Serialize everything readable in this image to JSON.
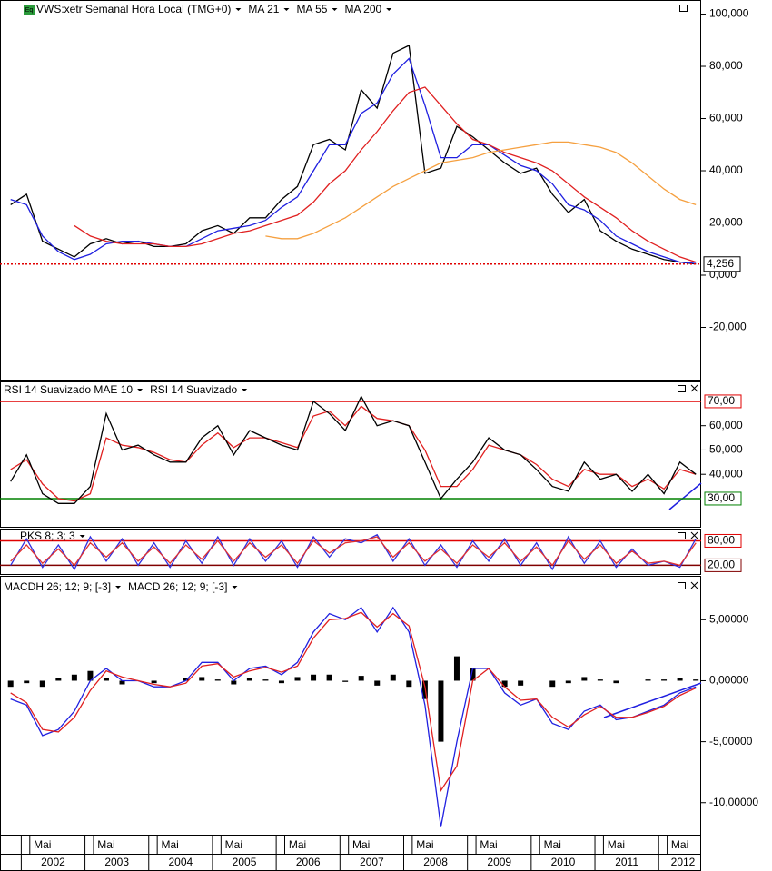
{
  "time_axis": {
    "xlim": [
      "2001-09",
      "2012-09"
    ],
    "x": [
      "2001-11",
      "2002-02",
      "2002-05",
      "2002-08",
      "2002-11",
      "2003-02",
      "2003-05",
      "2003-08",
      "2003-11",
      "2004-02",
      "2004-05",
      "2004-08",
      "2004-11",
      "2005-02",
      "2005-05",
      "2005-08",
      "2005-11",
      "2006-02",
      "2006-05",
      "2006-08",
      "2006-11",
      "2007-02",
      "2007-05",
      "2007-08",
      "2007-11",
      "2008-02",
      "2008-05",
      "2008-08",
      "2008-11",
      "2009-02",
      "2009-05",
      "2009-08",
      "2009-11",
      "2010-02",
      "2010-05",
      "2010-08",
      "2010-11",
      "2011-02",
      "2011-05",
      "2011-08",
      "2011-11",
      "2012-02",
      "2012-05",
      "2012-08"
    ],
    "month_ticks": [
      {
        "value": "2002-05",
        "label": "Mai"
      },
      {
        "value": "2003-05",
        "label": "Mai"
      },
      {
        "value": "2004-05",
        "label": "Mai"
      },
      {
        "value": "2005-05",
        "label": "Mai"
      },
      {
        "value": "2006-05",
        "label": "Mai"
      },
      {
        "value": "2007-05",
        "label": "Mai"
      },
      {
        "value": "2008-05",
        "label": "Mai"
      },
      {
        "value": "2009-05",
        "label": "Mai"
      },
      {
        "value": "2010-05",
        "label": "Mai"
      },
      {
        "value": "2011-05",
        "label": "Mai"
      },
      {
        "value": "2012-05",
        "label": "Mai"
      }
    ],
    "years": [
      "2002",
      "2003",
      "2004",
      "2005",
      "2006",
      "2007",
      "2008",
      "2009",
      "2010",
      "2011",
      "2012"
    ]
  },
  "chart_data": [
    {
      "type": "line",
      "title": "VWS:xetr Semanal Hora Local (TMG+0)",
      "badge": "Eq",
      "ylim": [
        -40,
        105.4
      ],
      "yticks": [
        {
          "value": 100,
          "label": "100,000"
        },
        {
          "value": 80,
          "label": "80,000"
        },
        {
          "value": 60,
          "label": "60,000"
        },
        {
          "value": 40,
          "label": "40,000"
        },
        {
          "value": 20,
          "label": "20,000"
        },
        {
          "value": 0,
          "label": "0,000"
        },
        {
          "value": -20,
          "label": "-20,000"
        }
      ],
      "last": {
        "value": 4.256,
        "label": "4,256",
        "color": "#e00000"
      },
      "series": [
        {
          "color": "#000000",
          "values": [
            27,
            31,
            13,
            10,
            7,
            12,
            14,
            12,
            13,
            11,
            11,
            12,
            17,
            19,
            16,
            22,
            22,
            29,
            34,
            50,
            52,
            48,
            71,
            64,
            85,
            88,
            39,
            41,
            57,
            53,
            48,
            43,
            39,
            41,
            31,
            24,
            29,
            17,
            13,
            10,
            8,
            6,
            5,
            4.256
          ]
        },
        {
          "name": "MA 21",
          "color": "#1f1fe0",
          "values": [
            29,
            27,
            15,
            9,
            6,
            8,
            12,
            13,
            13,
            12,
            11,
            11,
            14,
            17,
            18,
            19,
            21,
            26,
            30,
            40,
            50,
            50,
            62,
            66,
            77,
            83,
            65,
            45,
            45,
            50,
            50,
            46,
            42,
            40,
            35,
            27,
            25,
            21,
            15,
            12,
            9,
            7,
            5,
            4.5
          ]
        },
        {
          "name": "MA 55",
          "color": "#e02020",
          "values": [
            null,
            null,
            null,
            null,
            19,
            15,
            13,
            12,
            12,
            12,
            11,
            11,
            12,
            14,
            16,
            17,
            19,
            21,
            23,
            28,
            35,
            40,
            48,
            55,
            63,
            70,
            72,
            65,
            58,
            52,
            50,
            47,
            45,
            43,
            40,
            35,
            30,
            26,
            22,
            17,
            13,
            10,
            7,
            5
          ]
        },
        {
          "name": "MA 200",
          "color": "#f5a040",
          "values": [
            null,
            null,
            null,
            null,
            null,
            null,
            null,
            null,
            null,
            null,
            null,
            null,
            null,
            null,
            null,
            null,
            15,
            14,
            14,
            16,
            19,
            22,
            26,
            30,
            34,
            37,
            40,
            43,
            44,
            45,
            47,
            48,
            49,
            50,
            51,
            51,
            50,
            49,
            47,
            43,
            38,
            33,
            29,
            27
          ]
        }
      ]
    },
    {
      "type": "line",
      "ylim": [
        18.4,
        78.2
      ],
      "yticks": [
        {
          "value": 60,
          "label": "60,000"
        },
        {
          "value": 50,
          "label": "50,000"
        },
        {
          "value": 40,
          "label": "40,000"
        }
      ],
      "levels": [
        {
          "value": 70,
          "label": "70,00",
          "color": "#e00000"
        },
        {
          "value": 30,
          "label": "30,00",
          "color": "#008000"
        }
      ],
      "series": [
        {
          "name": "RSI 14 Suavizado MAE 10",
          "color": "#e02020",
          "values": [
            42,
            46,
            36,
            30,
            29,
            32,
            55,
            52,
            51,
            49,
            46,
            45,
            52,
            57,
            51,
            55,
            55,
            53,
            51,
            64,
            66,
            60,
            68,
            63,
            62,
            60,
            50,
            35,
            35,
            42,
            52,
            50,
            48,
            44,
            38,
            35,
            42,
            40,
            40,
            35,
            38,
            34,
            42,
            40
          ]
        },
        {
          "name": "RSI 14 Suavizado",
          "color": "#000000",
          "values": [
            37,
            48,
            32,
            28,
            28,
            35,
            65,
            50,
            52,
            48,
            45,
            45,
            55,
            60,
            48,
            58,
            55,
            52,
            50,
            70,
            65,
            58,
            72,
            60,
            62,
            60,
            45,
            30,
            38,
            45,
            55,
            50,
            48,
            42,
            35,
            33,
            45,
            38,
            40,
            33,
            40,
            32,
            45,
            40
          ]
        }
      ]
    },
    {
      "type": "line",
      "title": "PKS 8; 3; 3",
      "ylim": [
        -1.4,
        110
      ],
      "yticks": [],
      "levels": [
        {
          "value": 80,
          "label": "80,00",
          "color": "#e00000"
        },
        {
          "value": 20,
          "label": "20,00",
          "color": "#800000"
        }
      ],
      "series": [
        {
          "color": "#3030e0",
          "values": [
            20,
            85,
            15,
            70,
            10,
            90,
            30,
            85,
            20,
            75,
            15,
            80,
            25,
            90,
            20,
            85,
            30,
            80,
            15,
            90,
            40,
            85,
            75,
            95,
            30,
            85,
            20,
            70,
            15,
            80,
            30,
            85,
            20,
            75,
            10,
            90,
            25,
            80,
            15,
            60,
            20,
            30,
            15,
            85
          ]
        },
        {
          "color": "#e03030",
          "values": [
            30,
            70,
            25,
            60,
            20,
            75,
            40,
            75,
            30,
            65,
            25,
            70,
            35,
            80,
            30,
            75,
            40,
            70,
            25,
            80,
            50,
            75,
            80,
            90,
            40,
            75,
            30,
            60,
            25,
            70,
            40,
            75,
            30,
            65,
            20,
            80,
            35,
            70,
            25,
            55,
            25,
            30,
            20,
            75
          ]
        }
      ]
    },
    {
      "type": "combo",
      "ylim": [
        -12.7,
        8.6
      ],
      "yticks": [
        {
          "value": 5,
          "label": "5,00000"
        },
        {
          "value": 0,
          "label": "0,00000"
        },
        {
          "value": -5,
          "label": "-5,00000"
        },
        {
          "value": -10,
          "label": "-10,00000"
        }
      ],
      "series": [
        {
          "name": "MACDH 26; 12; 9; [-3]",
          "type": "bar",
          "color": "#000000",
          "values": [
            -0.5,
            -0.2,
            -0.5,
            0.2,
            0.5,
            0.8,
            0.2,
            -0.3,
            0,
            -0.2,
            0,
            0.2,
            0.3,
            0.1,
            -0.3,
            0.2,
            0.1,
            -0.2,
            0.3,
            0.5,
            0.5,
            -0.1,
            0.4,
            -0.4,
            0.5,
            -0.5,
            -1.5,
            -5,
            2,
            1,
            0,
            -0.5,
            -0.4,
            0,
            -0.5,
            -0.2,
            0.3,
            0.1,
            -0.2,
            0,
            0.1,
            0.1,
            0.2,
            0.1
          ]
        },
        {
          "name": "MACD 26; 12; 9; [-3]",
          "color": "#2020e0",
          "values": [
            -1.5,
            -2,
            -4.5,
            -4,
            -2.5,
            0,
            1,
            0,
            0,
            -0.5,
            -0.5,
            0,
            1.5,
            1.5,
            0,
            1,
            1.2,
            0.5,
            1.5,
            4,
            5.5,
            5,
            6,
            4,
            6,
            4,
            -2,
            -12,
            -5,
            1,
            1,
            -1,
            -2,
            -1.5,
            -3.5,
            -4,
            -2.5,
            -2,
            -3.2,
            -3,
            -2.5,
            -2,
            -1,
            -0.5
          ]
        },
        {
          "color": "#e02020",
          "values": [
            -1,
            -1.8,
            -4,
            -4.2,
            -3,
            -0.8,
            0.8,
            0.3,
            0,
            -0.3,
            -0.5,
            -0.2,
            1.2,
            1.4,
            0.3,
            0.8,
            1.1,
            0.7,
            1.2,
            3.5,
            5,
            5.1,
            5.6,
            4.4,
            5.5,
            4.5,
            -0.5,
            -9,
            -7,
            0,
            1,
            -0.5,
            -1.6,
            -1.5,
            -3,
            -3.8,
            -2.8,
            -2.1,
            -3,
            -3,
            -2.6,
            -2.1,
            -1.2,
            -0.6
          ]
        }
      ]
    }
  ]
}
